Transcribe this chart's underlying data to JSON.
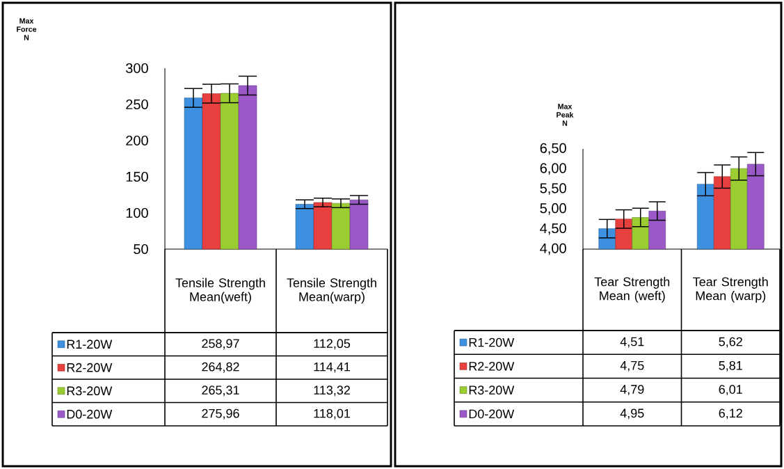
{
  "chart_data": [
    {
      "type": "bar",
      "ylabel": "Max Force N",
      "categories": [
        "Tensile Strength Mean(weft)",
        "Tensile Strength Mean(warp)"
      ],
      "series": [
        {
          "name": "R1-20W",
          "color": "#3d8fe0",
          "values": [
            258.97,
            112.05
          ],
          "errors": [
            13,
            6
          ],
          "value_labels": [
            "258,97",
            "112,05"
          ]
        },
        {
          "name": "R2-20W",
          "color": "#e8403f",
          "values": [
            264.82,
            114.41
          ],
          "errors": [
            13,
            6
          ],
          "value_labels": [
            "264,82",
            "114,41"
          ]
        },
        {
          "name": "R3-20W",
          "color": "#9acd32",
          "values": [
            265.31,
            113.32
          ],
          "errors": [
            13,
            6
          ],
          "value_labels": [
            "265,31",
            "113,32"
          ]
        },
        {
          "name": "D0-20W",
          "color": "#9b59c8",
          "values": [
            275.96,
            118.01
          ],
          "errors": [
            13,
            6
          ],
          "value_labels": [
            "275,96",
            "118,01"
          ]
        }
      ],
      "ylim": [
        50,
        300
      ],
      "yticks": [
        50,
        100,
        150,
        200,
        250,
        300
      ],
      "legend": "bottom"
    },
    {
      "type": "bar",
      "ylabel": "Max Peak N",
      "categories": [
        "Tear Strength Mean (weft)",
        "Tear Strength Mean (warp)"
      ],
      "series": [
        {
          "name": "R1-20W",
          "color": "#3d8fe0",
          "values": [
            4.51,
            5.62
          ],
          "errors": [
            0.23,
            0.29
          ],
          "value_labels": [
            "4,51",
            "5,62"
          ]
        },
        {
          "name": "R2-20W",
          "color": "#e8403f",
          "values": [
            4.75,
            5.81
          ],
          "errors": [
            0.23,
            0.29
          ],
          "value_labels": [
            "4,75",
            "5,81"
          ]
        },
        {
          "name": "R3-20W",
          "color": "#9acd32",
          "values": [
            4.79,
            6.01
          ],
          "errors": [
            0.23,
            0.29
          ],
          "value_labels": [
            "4,79",
            "6,01"
          ]
        },
        {
          "name": "D0-20W",
          "color": "#9b59c8",
          "values": [
            4.95,
            6.12
          ],
          "errors": [
            0.23,
            0.29
          ],
          "value_labels": [
            "4,95",
            "6,12"
          ]
        }
      ],
      "ylim": [
        4,
        6.5
      ],
      "yticks": [
        {
          "value": 4,
          "label": "4,00"
        },
        {
          "value": 4.5,
          "label": "4,50"
        },
        {
          "value": 5,
          "label": "5,00"
        },
        {
          "value": 5.5,
          "label": "5,50"
        },
        {
          "value": 6,
          "label": "6,00"
        },
        {
          "value": 6.5,
          "label": "6,50"
        }
      ],
      "legend": "bottom"
    }
  ]
}
